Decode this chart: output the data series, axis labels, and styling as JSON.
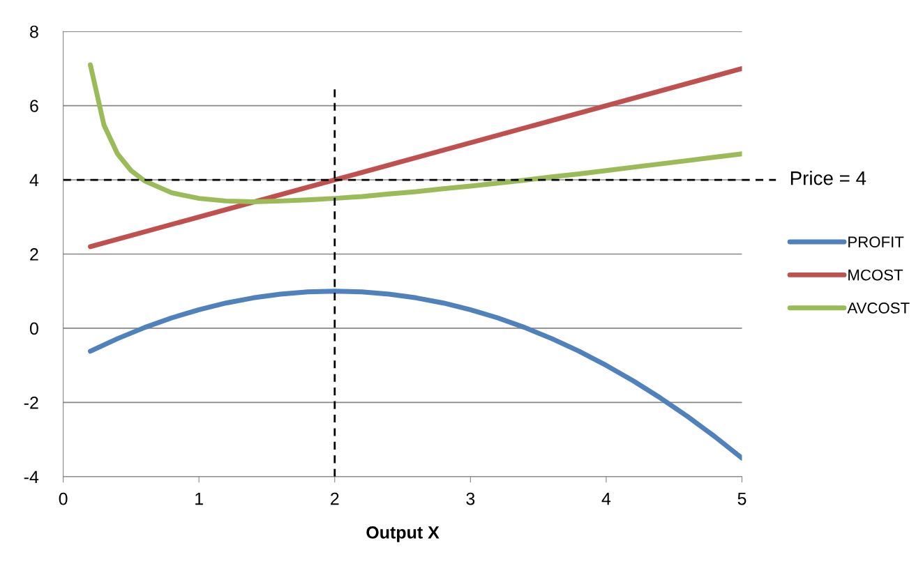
{
  "chart_data": {
    "type": "line",
    "xlabel": "Output X",
    "x": [
      0.2,
      0.3,
      0.4,
      0.5,
      0.6,
      0.8,
      1.0,
      1.2,
      1.4,
      1.6,
      1.8,
      2.0,
      2.2,
      2.4,
      2.6,
      2.8,
      3.0,
      3.2,
      3.4,
      3.6,
      3.8,
      4.0,
      4.2,
      4.4,
      4.6,
      4.8,
      5.0
    ],
    "series": [
      {
        "name": "PROFIT",
        "color": "#4f81bd",
        "values": [
          -0.62,
          -0.45,
          -0.28,
          -0.13,
          0.02,
          0.28,
          0.5,
          0.68,
          0.82,
          0.92,
          0.98,
          1,
          0.98,
          0.92,
          0.82,
          0.68,
          0.5,
          0.28,
          0.02,
          -0.28,
          -0.62,
          -1,
          -1.42,
          -1.88,
          -2.38,
          -2.92,
          -3.5
        ]
      },
      {
        "name": "MCOST",
        "color": "#c0504d",
        "x": [
          0.2,
          5.0
        ],
        "values": [
          2.2,
          7
        ]
      },
      {
        "name": "AVCOST",
        "color": "#9bbb59",
        "values": [
          7.1,
          5.48,
          4.7,
          4.25,
          3.97,
          3.65,
          3.5,
          3.43,
          3.41,
          3.43,
          3.46,
          3.5,
          3.55,
          3.62,
          3.68,
          3.76,
          3.83,
          3.91,
          3.99,
          4.08,
          4.16,
          4.25,
          4.34,
          4.43,
          4.52,
          4.61,
          4.7
        ]
      }
    ],
    "xlim": [
      0,
      5
    ],
    "xticks": [
      0,
      1,
      2,
      3,
      4,
      5
    ],
    "ylim": [
      -4,
      8
    ],
    "yticks": [
      -4,
      -2,
      0,
      2,
      4,
      6,
      8
    ],
    "grid": "y",
    "legend": "right",
    "marker": "none",
    "line_style": "solid",
    "ref_lines": [
      {
        "axis": "y",
        "value": 4,
        "label": "Price = 4",
        "color": "#000000",
        "line_style": "dashed"
      },
      {
        "axis": "x",
        "value": 2,
        "label": null,
        "color": "#000000",
        "line_style": "dashed"
      }
    ]
  }
}
